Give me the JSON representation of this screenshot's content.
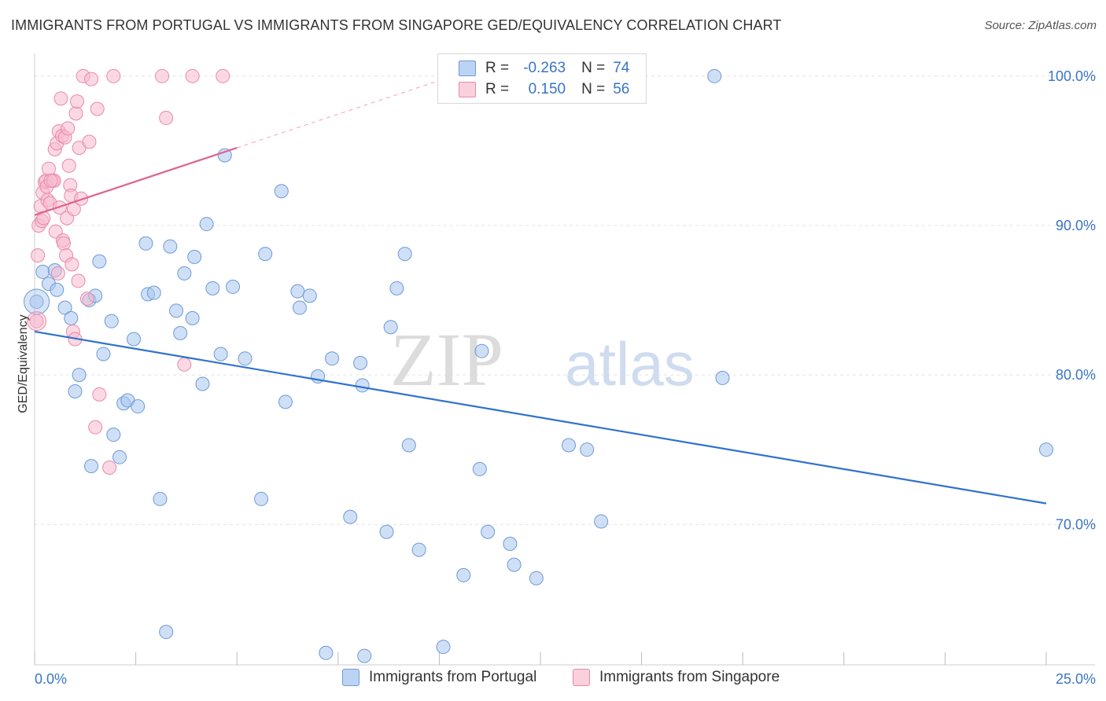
{
  "header": {
    "title": "IMMIGRANTS FROM PORTUGAL VS IMMIGRANTS FROM SINGAPORE GED/EQUIVALENCY CORRELATION CHART",
    "source": "Source: ZipAtlas.com"
  },
  "legend_box": {
    "rows": [
      {
        "r_key": "R =",
        "r_value": "-0.263",
        "n_key": "N =",
        "n_value": "74"
      },
      {
        "r_key": "R =",
        "r_value": "0.150",
        "n_key": "N =",
        "n_value": "56"
      }
    ]
  },
  "watermark": {
    "zip": "ZIP",
    "atlas": "atlas"
  },
  "colors": {
    "portugal_fill": "#a8c6ee",
    "portugal_stroke": "#6e9ad6",
    "portugal_line": "#2f72cf",
    "singapore_fill": "#f7b9cd",
    "singapore_stroke": "#e88aa8",
    "singapore_line": "#e0648e",
    "grid": "#e3e3e3",
    "tick_label": "#3a75c4"
  },
  "chart_data": {
    "type": "scatter",
    "title": "IMMIGRANTS FROM PORTUGAL VS IMMIGRANTS FROM SINGAPORE GED/EQUIVALENCY CORRELATION CHART",
    "xlabel": "",
    "ylabel": "GED/Equivalency",
    "xlim": [
      0,
      25
    ],
    "ylim": [
      60.6,
      101.2
    ],
    "x_tick_labels": [
      "0.0%",
      "25.0%"
    ],
    "y_ticks": [
      70,
      80,
      90,
      100
    ],
    "y_tick_labels": [
      "70.0%",
      "80.0%",
      "90.0%",
      "100.0%"
    ],
    "grid": true,
    "legend_position": "bottom",
    "series": [
      {
        "name": "Immigrants from Portugal",
        "points": [
          [
            0.05,
            84.9
          ],
          [
            0.2,
            86.9
          ],
          [
            0.35,
            86.1
          ],
          [
            0.5,
            87.0
          ],
          [
            0.55,
            85.7
          ],
          [
            0.75,
            84.5
          ],
          [
            0.9,
            83.8
          ],
          [
            1.0,
            78.9
          ],
          [
            1.1,
            80.0
          ],
          [
            1.35,
            85.0
          ],
          [
            1.4,
            73.9
          ],
          [
            1.5,
            85.3
          ],
          [
            1.6,
            87.6
          ],
          [
            1.7,
            81.4
          ],
          [
            1.9,
            83.6
          ],
          [
            1.95,
            76.0
          ],
          [
            2.1,
            74.5
          ],
          [
            2.2,
            78.1
          ],
          [
            2.3,
            78.3
          ],
          [
            2.45,
            82.4
          ],
          [
            2.55,
            77.9
          ],
          [
            2.75,
            88.8
          ],
          [
            2.8,
            85.4
          ],
          [
            2.95,
            85.5
          ],
          [
            3.1,
            71.7
          ],
          [
            3.25,
            62.8
          ],
          [
            3.35,
            88.6
          ],
          [
            3.5,
            84.3
          ],
          [
            3.6,
            82.8
          ],
          [
            3.7,
            86.8
          ],
          [
            3.9,
            83.8
          ],
          [
            3.95,
            87.9
          ],
          [
            4.15,
            79.4
          ],
          [
            4.25,
            90.1
          ],
          [
            4.4,
            85.8
          ],
          [
            4.6,
            81.4
          ],
          [
            4.7,
            94.7
          ],
          [
            4.9,
            85.9
          ],
          [
            5.2,
            81.1
          ],
          [
            5.6,
            71.7
          ],
          [
            5.7,
            88.1
          ],
          [
            6.1,
            92.3
          ],
          [
            6.2,
            78.2
          ],
          [
            6.5,
            85.6
          ],
          [
            6.55,
            84.5
          ],
          [
            6.8,
            85.3
          ],
          [
            7.0,
            79.9
          ],
          [
            7.2,
            61.4
          ],
          [
            7.35,
            81.1
          ],
          [
            7.8,
            70.5
          ],
          [
            8.05,
            80.8
          ],
          [
            8.1,
            79.3
          ],
          [
            8.15,
            61.2
          ],
          [
            8.7,
            69.5
          ],
          [
            8.8,
            83.2
          ],
          [
            8.95,
            85.8
          ],
          [
            9.15,
            88.1
          ],
          [
            9.25,
            75.3
          ],
          [
            9.5,
            68.3
          ],
          [
            10.1,
            61.8
          ],
          [
            10.6,
            66.6
          ],
          [
            11.0,
            73.7
          ],
          [
            11.05,
            81.6
          ],
          [
            11.2,
            69.5
          ],
          [
            11.75,
            68.7
          ],
          [
            11.85,
            67.3
          ],
          [
            12.4,
            66.4
          ],
          [
            13.2,
            75.3
          ],
          [
            13.65,
            75.0
          ],
          [
            13.85,
            100.0
          ],
          [
            14.0,
            70.2
          ],
          [
            16.8,
            100.0
          ],
          [
            17.0,
            79.8
          ],
          [
            25.0,
            75.0
          ]
        ]
      },
      {
        "name": "Immigrants from Singapore",
        "points": [
          [
            0.05,
            83.6
          ],
          [
            0.08,
            88.0
          ],
          [
            0.1,
            90.0
          ],
          [
            0.15,
            91.3
          ],
          [
            0.18,
            90.3
          ],
          [
            0.2,
            92.2
          ],
          [
            0.22,
            90.5
          ],
          [
            0.25,
            92.9
          ],
          [
            0.28,
            93.0
          ],
          [
            0.3,
            92.6
          ],
          [
            0.32,
            91.7
          ],
          [
            0.35,
            93.8
          ],
          [
            0.38,
            91.5
          ],
          [
            0.45,
            93.0
          ],
          [
            0.48,
            93.0
          ],
          [
            0.5,
            95.1
          ],
          [
            0.52,
            89.6
          ],
          [
            0.55,
            95.5
          ],
          [
            0.58,
            86.8
          ],
          [
            0.6,
            96.3
          ],
          [
            0.62,
            91.2
          ],
          [
            0.65,
            98.5
          ],
          [
            0.68,
            96.0
          ],
          [
            0.7,
            89.0
          ],
          [
            0.72,
            88.8
          ],
          [
            0.75,
            95.9
          ],
          [
            0.78,
            88.0
          ],
          [
            0.8,
            90.5
          ],
          [
            0.82,
            96.5
          ],
          [
            0.85,
            94.0
          ],
          [
            0.88,
            92.7
          ],
          [
            0.9,
            92.0
          ],
          [
            0.92,
            87.4
          ],
          [
            0.95,
            82.9
          ],
          [
            0.97,
            91.1
          ],
          [
            1.0,
            82.4
          ],
          [
            1.02,
            97.5
          ],
          [
            1.05,
            98.3
          ],
          [
            1.08,
            86.3
          ],
          [
            1.1,
            95.2
          ],
          [
            1.15,
            91.8
          ],
          [
            1.2,
            100.0
          ],
          [
            1.3,
            85.1
          ],
          [
            1.35,
            95.6
          ],
          [
            1.4,
            99.8
          ],
          [
            1.5,
            76.5
          ],
          [
            1.55,
            97.8
          ],
          [
            1.6,
            78.7
          ],
          [
            1.85,
            73.8
          ],
          [
            1.95,
            100.0
          ],
          [
            3.15,
            100.0
          ],
          [
            3.25,
            97.2
          ],
          [
            3.7,
            80.7
          ],
          [
            3.9,
            100.0
          ],
          [
            4.65,
            100.0
          ],
          [
            0.4,
            93.0
          ]
        ]
      }
    ],
    "trend_lines": [
      {
        "series": "Immigrants from Portugal",
        "x": [
          0,
          25
        ],
        "y": [
          82.9,
          71.4
        ]
      },
      {
        "series": "Immigrants from Singapore",
        "x": [
          0,
          5
        ],
        "y": [
          90.7,
          95.2
        ],
        "dashed_extension_to_x": 10
      }
    ]
  },
  "bottom_legend": {
    "items": [
      "Immigrants from Portugal",
      "Immigrants from Singapore"
    ]
  },
  "axes_text": {
    "x_left": "0.0%",
    "x_right": "25.0%",
    "ylabel": "GED/Equivalency"
  }
}
